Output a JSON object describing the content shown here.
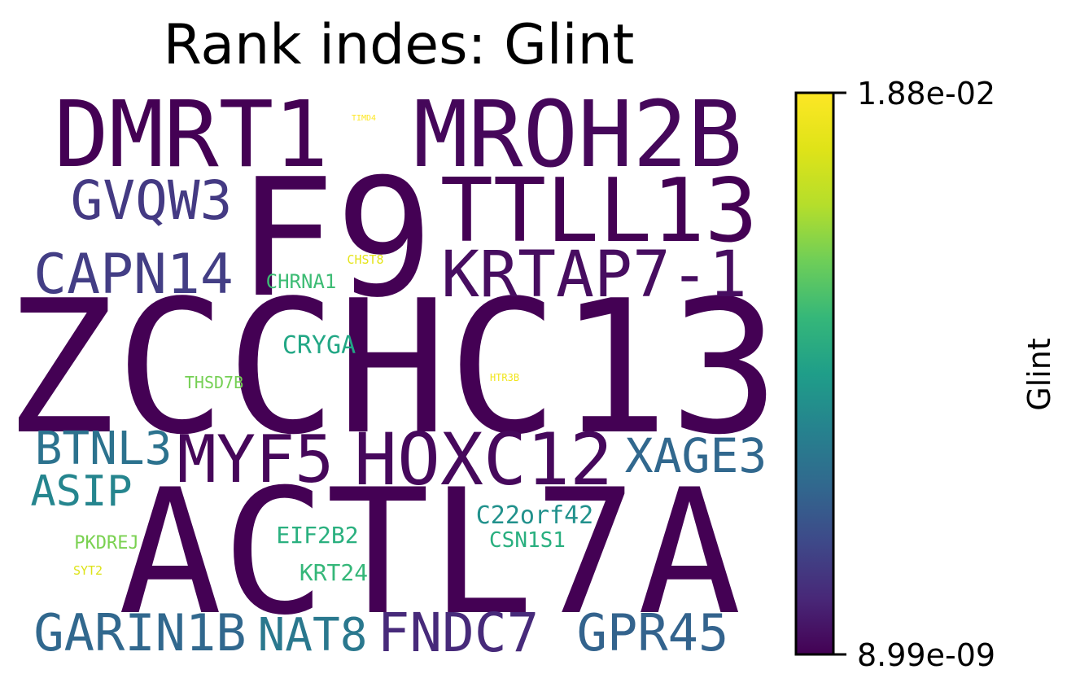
{
  "chart_data": {
    "type": "wordcloud",
    "title": "Rank indes: Glint",
    "colorbar": {
      "label": "Glint",
      "min_label": "8.99e-09",
      "max_label": "1.88e-02",
      "colormap": "viridis"
    },
    "words": [
      {
        "text": "ZCCHC13",
        "color": "#440154"
      },
      {
        "text": "ACTL7A",
        "color": "#440154"
      },
      {
        "text": "F9",
        "color": "#440154"
      },
      {
        "text": "DMRT1",
        "color": "#440154"
      },
      {
        "text": "MROH2B",
        "color": "#45075a"
      },
      {
        "text": "TTLL13",
        "color": "#440154"
      },
      {
        "text": "HOXC12",
        "color": "#46085c"
      },
      {
        "text": "KRTAP7-1",
        "color": "#470d60"
      },
      {
        "text": "MYF5",
        "color": "#46075a"
      },
      {
        "text": "FNDC7",
        "color": "#472a7a"
      },
      {
        "text": "GVQW3",
        "color": "#443a83"
      },
      {
        "text": "CAPN14",
        "color": "#433e85"
      },
      {
        "text": "NAT8",
        "color": "#2a788e"
      },
      {
        "text": "GARIN1B",
        "color": "#31688e"
      },
      {
        "text": "GPR45",
        "color": "#33638d"
      },
      {
        "text": "XAGE3",
        "color": "#31688e"
      },
      {
        "text": "BTNL3",
        "color": "#2c728e"
      },
      {
        "text": "ASIP",
        "color": "#25858e"
      },
      {
        "text": "C22orf42",
        "color": "#21918c"
      },
      {
        "text": "CRYGA",
        "color": "#22a785"
      },
      {
        "text": "EIF2B2",
        "color": "#2ab07f"
      },
      {
        "text": "KRT24",
        "color": "#35b779"
      },
      {
        "text": "CSN1S1",
        "color": "#29af7f"
      },
      {
        "text": "CHRNA1",
        "color": "#3dbc74"
      },
      {
        "text": "PKDREJ",
        "color": "#7ad151"
      },
      {
        "text": "THSD7B",
        "color": "#75d054"
      },
      {
        "text": "CHST8",
        "color": "#e5e419"
      },
      {
        "text": "SYT2",
        "color": "#dde318"
      },
      {
        "text": "HTR3B",
        "color": "#f1e51d"
      },
      {
        "text": "TIMD4",
        "color": "#fde725"
      }
    ]
  }
}
